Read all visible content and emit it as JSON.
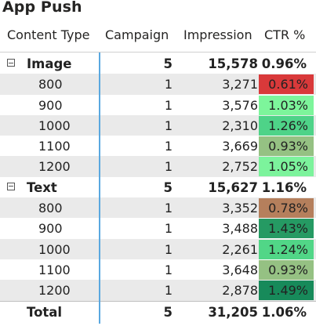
{
  "title": "App Push",
  "headers": {
    "content_type": "Content Type",
    "campaign": "Campaign",
    "impression": "Impression",
    "ctr": "CTR %"
  },
  "groups": [
    {
      "name": "Image",
      "campaign": "5",
      "impression": "15,578",
      "ctr": "0.96%",
      "rows": [
        {
          "label": "800",
          "campaign": "1",
          "impression": "3,271",
          "ctr": "0.61%",
          "color": "#d9393a"
        },
        {
          "label": "900",
          "campaign": "1",
          "impression": "3,576",
          "ctr": "1.03%",
          "color": "#7df59b"
        },
        {
          "label": "1000",
          "campaign": "1",
          "impression": "2,310",
          "ctr": "1.26%",
          "color": "#4ed388"
        },
        {
          "label": "1100",
          "campaign": "1",
          "impression": "3,669",
          "ctr": "0.93%",
          "color": "#95c183"
        },
        {
          "label": "1200",
          "campaign": "1",
          "impression": "2,752",
          "ctr": "1.05%",
          "color": "#7cf39c"
        }
      ]
    },
    {
      "name": "Text",
      "campaign": "5",
      "impression": "15,627",
      "ctr": "1.16%",
      "rows": [
        {
          "label": "800",
          "campaign": "1",
          "impression": "3,352",
          "ctr": "0.78%",
          "color": "#b57f5c"
        },
        {
          "label": "900",
          "campaign": "1",
          "impression": "3,488",
          "ctr": "1.43%",
          "color": "#259a63"
        },
        {
          "label": "1000",
          "campaign": "1",
          "impression": "2,261",
          "ctr": "1.24%",
          "color": "#51d687"
        },
        {
          "label": "1100",
          "campaign": "1",
          "impression": "3,648",
          "ctr": "0.93%",
          "color": "#95c183"
        },
        {
          "label": "1200",
          "campaign": "1",
          "impression": "2,878",
          "ctr": "1.49%",
          "color": "#178a5a"
        }
      ]
    }
  ],
  "total": {
    "label": "Total",
    "campaign": "5",
    "impression": "31,205",
    "ctr": "1.06%"
  }
}
